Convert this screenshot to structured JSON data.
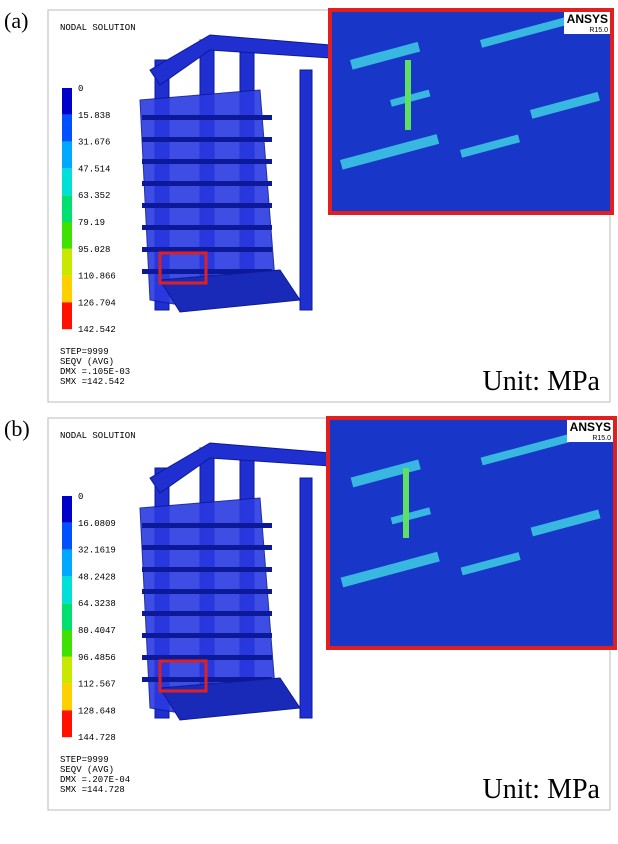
{
  "panels": [
    {
      "label": "(a)",
      "header": "NODAL SOLUTION",
      "legend": [
        "0",
        "15.838",
        "31.676",
        "47.514",
        "63.352",
        "79.19",
        "95.028",
        "110.866",
        "126.704",
        "142.542"
      ],
      "footer": [
        "STEP=9999",
        "SEQV    (AVG)",
        "DMX =.105E-03",
        "SMX =142.542"
      ],
      "unit": "Unit: MPa",
      "logo": "ANSYS",
      "version": "R15.0"
    },
    {
      "label": "(b)",
      "header": "NODAL SOLUTION",
      "legend": [
        "0",
        "16.0809",
        "32.1619",
        "48.2428",
        "64.3238",
        "80.4047",
        "96.4856",
        "112.567",
        "128.648",
        "144.728"
      ],
      "footer": [
        "STEP=9999",
        "SEQV    (AVG)",
        "DMX =.207E-04",
        "SMX =144.728"
      ],
      "unit": "Unit: MPa",
      "logo": "ANSYS",
      "version": "R15.0"
    }
  ]
}
